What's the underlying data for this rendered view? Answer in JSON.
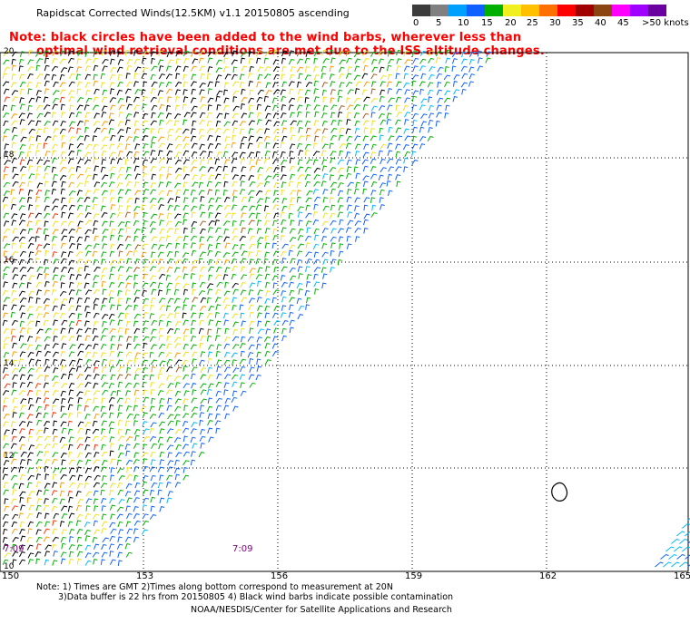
{
  "header": {
    "title": "Rapidscat Corrected Winds(12.5KM) v1.1 20150805 ascending",
    "note_line1": "Note: black circles have been added to the wind barbs, wherever less than",
    "note_line2": "optimal wind retrieval conditions are met due to the ISS altitude changes."
  },
  "legend": {
    "colors": [
      "#3c3c3c",
      "#808080",
      "#00a0ff",
      "#1060ff",
      "#00b000",
      "#f0f020",
      "#ffc000",
      "#ff7000",
      "#ff0000",
      "#a00000",
      "#8b4513",
      "#ff00ff",
      "#a000ff",
      "#6a00a0"
    ],
    "labels": [
      "0",
      "5",
      "10",
      "15",
      "20",
      "25",
      "30",
      "35",
      "40",
      "45",
      ">50 knots"
    ]
  },
  "axes": {
    "x_ticks": [
      "150",
      "153",
      "156",
      "159",
      "162",
      "165"
    ],
    "y_ticks": [
      "20",
      "18",
      "16",
      "14",
      "12",
      "10"
    ]
  },
  "overlay": {
    "time_label": "7:09",
    "time_label_left": "7:09"
  },
  "footer": {
    "note_line1": "Note: 1) Times are GMT 2)Times along bottom correspond to measurement at 20N",
    "note_line2": "3)Data buffer is 22 hrs from 20150805 4) Black wind barbs indicate possible contamination",
    "credit": "NOAA/NESDIS/Center for Satellite Applications and Research"
  }
}
